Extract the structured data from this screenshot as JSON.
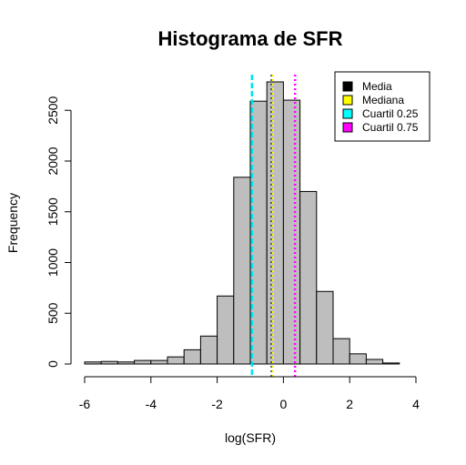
{
  "chart_data": {
    "type": "bar",
    "title": "Histograma de SFR",
    "xlabel": "log(SFR)",
    "ylabel": "Frequency",
    "bin_width": 0.5,
    "bins": [
      {
        "x0": -6.0,
        "x1": -5.5,
        "count": 20
      },
      {
        "x0": -5.5,
        "x1": -5.0,
        "count": 25
      },
      {
        "x0": -5.0,
        "x1": -4.5,
        "count": 20
      },
      {
        "x0": -4.5,
        "x1": -4.0,
        "count": 35
      },
      {
        "x0": -4.0,
        "x1": -3.5,
        "count": 35
      },
      {
        "x0": -3.5,
        "x1": -3.0,
        "count": 70
      },
      {
        "x0": -3.0,
        "x1": -2.5,
        "count": 140
      },
      {
        "x0": -2.5,
        "x1": -2.0,
        "count": 275
      },
      {
        "x0": -2.0,
        "x1": -1.5,
        "count": 670
      },
      {
        "x0": -1.5,
        "x1": -1.0,
        "count": 1840
      },
      {
        "x0": -1.0,
        "x1": -0.5,
        "count": 2590
      },
      {
        "x0": -0.5,
        "x1": 0.0,
        "count": 2780
      },
      {
        "x0": 0.0,
        "x1": 0.5,
        "count": 2600
      },
      {
        "x0": 0.5,
        "x1": 1.0,
        "count": 1700
      },
      {
        "x0": 1.0,
        "x1": 1.5,
        "count": 715
      },
      {
        "x0": 1.5,
        "x1": 2.0,
        "count": 250
      },
      {
        "x0": 2.0,
        "x1": 2.5,
        "count": 100
      },
      {
        "x0": 2.5,
        "x1": 3.0,
        "count": 45
      },
      {
        "x0": 3.0,
        "x1": 3.5,
        "count": 10
      }
    ],
    "bar_color": "#bebebe",
    "xlim": [
      -6,
      4
    ],
    "ylim": [
      0,
      2780
    ],
    "xticks": [
      -6,
      -4,
      -2,
      0,
      2,
      4
    ],
    "yticks": [
      0,
      500,
      1000,
      1500,
      2000,
      2500
    ],
    "vlines": [
      {
        "name": "Media",
        "x": -0.35,
        "color": "#000000",
        "style": "dotted"
      },
      {
        "name": "Mediana",
        "x": -0.32,
        "color": "#ffff00",
        "style": "dotted"
      },
      {
        "name": "Cuartil 0.25",
        "x": -0.95,
        "color": "#00e5ee",
        "style": "dashed"
      },
      {
        "name": "Cuartil 0.75",
        "x": 0.35,
        "color": "#ff00ff",
        "style": "dotted"
      }
    ],
    "legend": {
      "position": "top-right",
      "entries": [
        {
          "label": "Media",
          "color": "#000000"
        },
        {
          "label": "Mediana",
          "color": "#ffff00"
        },
        {
          "label": "Cuartil 0.25",
          "color": "#00ffff"
        },
        {
          "label": "Cuartil 0.75",
          "color": "#ff00ff"
        }
      ]
    }
  }
}
